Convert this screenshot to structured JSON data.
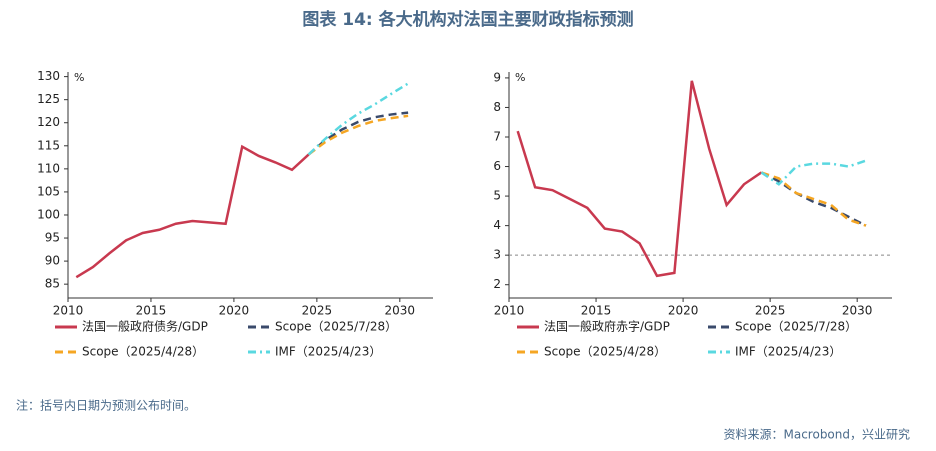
{
  "title": "图表 14: 各大机构对法国主要财政指标预测",
  "note": "注：括号内日期为预测公布时间。",
  "source": "资料来源：Macrobond，兴业研究",
  "chart_data": [
    {
      "type": "line",
      "unit": "%",
      "xlim": [
        2010,
        2032
      ],
      "xticks": [
        2010,
        2015,
        2020,
        2025,
        2030
      ],
      "ylim": [
        82,
        131
      ],
      "yticks": [
        85,
        90,
        95,
        100,
        105,
        110,
        115,
        120,
        125,
        130
      ],
      "series": [
        {
          "name": "法国一般政府债务/GDP",
          "color": "#c8394f",
          "dash": "solid",
          "x": [
            2010.5,
            2011.5,
            2012.5,
            2013.5,
            2014.5,
            2015.5,
            2016.5,
            2017.5,
            2018.5,
            2019.5,
            2020.5,
            2021.5,
            2022.5,
            2023.5,
            2024.5
          ],
          "values": [
            86.5,
            88.7,
            91.7,
            94.5,
            96.1,
            96.8,
            98.1,
            98.7,
            98.4,
            98.1,
            114.8,
            112.8,
            111.4,
            109.8,
            113.1
          ]
        },
        {
          "name": "Scope（2025/7/28）",
          "color": "#3a4a6b",
          "dash": "dash",
          "x": [
            2024.5,
            2025.5,
            2026.5,
            2027.5,
            2028.5,
            2029.5,
            2030.5
          ],
          "values": [
            113.1,
            116.2,
            118.5,
            120.2,
            121.2,
            121.8,
            122.2
          ]
        },
        {
          "name": "Scope（2025/4/28）",
          "color": "#f5a623",
          "dash": "dash",
          "x": [
            2024.5,
            2025.5,
            2026.5,
            2027.5,
            2028.5,
            2029.5,
            2030.5
          ],
          "values": [
            113.1,
            115.8,
            117.8,
            119.3,
            120.4,
            121.0,
            121.5
          ]
        },
        {
          "name": "IMF（2025/4/23）",
          "color": "#5ad8e0",
          "dash": "dashdot",
          "x": [
            2024.5,
            2025.5,
            2026.5,
            2027.5,
            2028.5,
            2029.5,
            2030.5
          ],
          "values": [
            113.1,
            116.5,
            119.5,
            122.0,
            124.0,
            126.3,
            128.5
          ]
        }
      ]
    },
    {
      "type": "line",
      "unit": "%",
      "xlim": [
        2010,
        2032
      ],
      "xticks": [
        2010,
        2015,
        2020,
        2025,
        2030
      ],
      "ylim": [
        1.55,
        9.2
      ],
      "yticks": [
        2,
        3,
        4,
        5,
        6,
        7,
        8,
        9
      ],
      "refline": 3,
      "series": [
        {
          "name": "法国一般政府赤字/GDP",
          "color": "#c8394f",
          "dash": "solid",
          "x": [
            2010.5,
            2011.5,
            2012.5,
            2013.5,
            2014.5,
            2015.5,
            2016.5,
            2017.5,
            2018.5,
            2019.5,
            2020.5,
            2021.5,
            2022.5,
            2023.5,
            2024.5
          ],
          "values": [
            7.2,
            5.3,
            5.2,
            4.9,
            4.6,
            3.9,
            3.8,
            3.4,
            2.3,
            2.4,
            8.9,
            6.6,
            4.7,
            5.4,
            5.8
          ]
        },
        {
          "name": "Scope（2025/7/28）",
          "color": "#3a4a6b",
          "dash": "dash",
          "x": [
            2024.5,
            2025.5,
            2026.5,
            2027.5,
            2028.5,
            2029.5,
            2030.5
          ],
          "values": [
            5.8,
            5.5,
            5.1,
            4.8,
            4.6,
            4.3,
            4.0
          ]
        },
        {
          "name": "Scope（2025/4/28）",
          "color": "#f5a623",
          "dash": "dash",
          "x": [
            2024.5,
            2025.5,
            2026.5,
            2027.5,
            2028.5,
            2029.5,
            2030.5
          ],
          "values": [
            5.8,
            5.6,
            5.1,
            4.9,
            4.7,
            4.2,
            4.0
          ]
        },
        {
          "name": "IMF（2025/4/23）",
          "color": "#5ad8e0",
          "dash": "dashdot",
          "x": [
            2024.5,
            2025.5,
            2026.5,
            2027.5,
            2028.5,
            2029.5,
            2030.5
          ],
          "values": [
            5.8,
            5.4,
            6.0,
            6.1,
            6.1,
            6.0,
            6.2
          ]
        }
      ]
    }
  ]
}
